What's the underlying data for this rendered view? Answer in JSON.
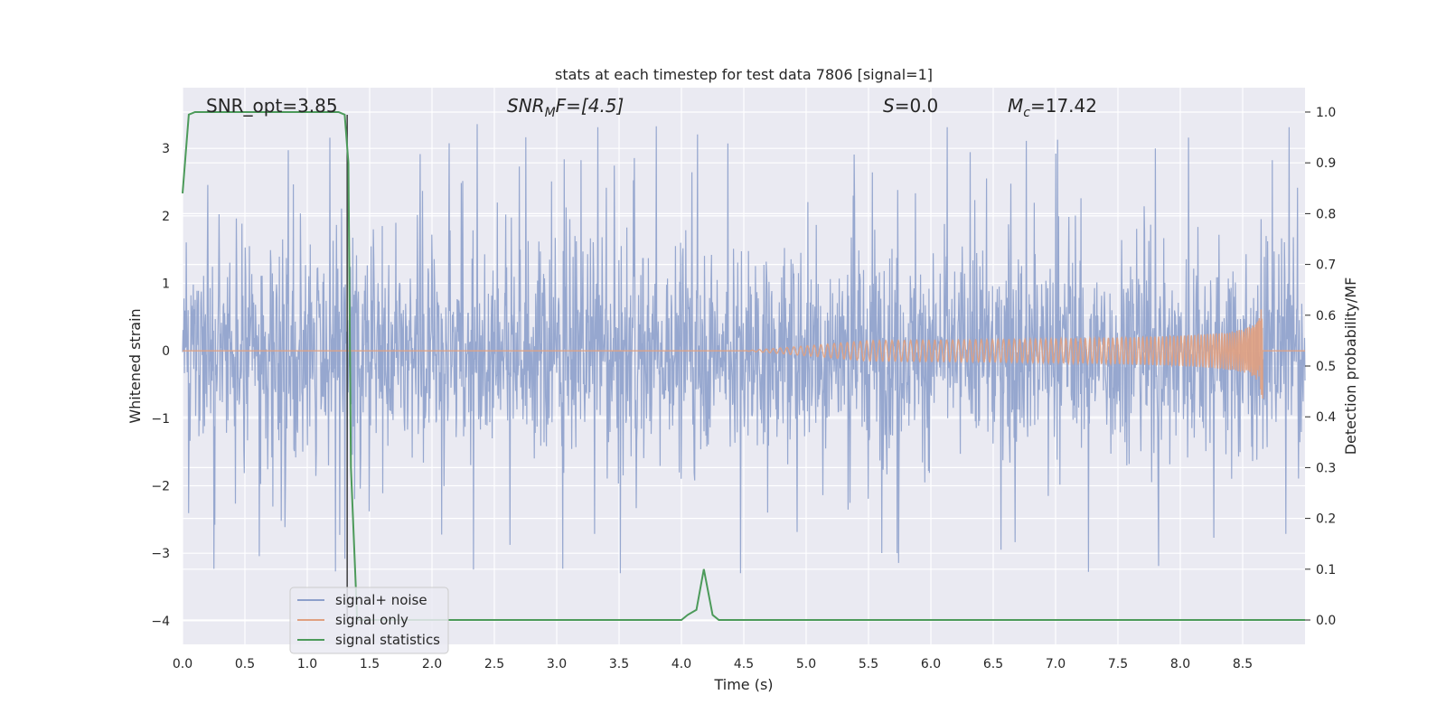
{
  "chart_data": {
    "type": "line",
    "title": "stats at each timestep for test data 7806 [signal=1]",
    "xlabel": "Time (s)",
    "ylabel": "Whitened strain",
    "y2label": "Detection probability/MF",
    "xlim": [
      0.0,
      9.0
    ],
    "ylim": [
      -4.35,
      3.9
    ],
    "y2lim": [
      -0.048,
      1.048
    ],
    "xticks": [
      "0.0",
      "0.5",
      "1.0",
      "1.5",
      "2.0",
      "2.5",
      "3.0",
      "3.5",
      "4.0",
      "4.5",
      "5.0",
      "5.5",
      "6.0",
      "6.5",
      "7.0",
      "7.5",
      "8.0",
      "8.5"
    ],
    "yticks": [
      "3",
      "2",
      "1",
      "0",
      "−1",
      "−2",
      "−3",
      "−4"
    ],
    "y2ticks": [
      "1.0",
      "0.9",
      "0.8",
      "0.7",
      "0.6",
      "0.5",
      "0.4",
      "0.3",
      "0.2",
      "0.1",
      "0.0"
    ],
    "grid": true,
    "legend_position": "lower-left",
    "annotations": {
      "snr_opt": "SNR_opt=3.85",
      "snr_mf_label": "SNR",
      "snr_mf_sub": "M",
      "snr_mf_rest": "F=[4.5]",
      "s_label": "S",
      "s_value": "=0.0",
      "mc_label": "M",
      "mc_sub": "c",
      "mc_value": "=17.42"
    },
    "vertical_marker_x": 1.32,
    "series": [
      {
        "name": "signal+ noise",
        "color": "#8da0cb",
        "axis": "left",
        "description_range": [
          -4.0,
          3.5
        ],
        "sample_envelope": {
          "typical_min": -1.7,
          "typical_max": 1.7,
          "spike_max": 3.5,
          "spike_min": -4.0
        }
      },
      {
        "name": "signal only",
        "color": "#e0a080",
        "axis": "left",
        "chirp": {
          "start_x": 4.5,
          "end_x": 8.66,
          "peak_amplitude": 0.85
        }
      },
      {
        "name": "signal statistics",
        "color": "#4c9a5a",
        "axis": "right",
        "x": [
          0.0,
          0.05,
          0.1,
          0.2,
          1.25,
          1.3,
          1.33,
          1.35,
          1.4,
          1.45,
          4.0,
          4.05,
          4.12,
          4.18,
          4.25,
          4.3,
          9.0
        ],
        "y": [
          0.84,
          0.995,
          1.0,
          1.0,
          1.0,
          0.995,
          0.9,
          0.3,
          0.0,
          0.0,
          0.0,
          0.01,
          0.02,
          0.1,
          0.01,
          0.0,
          0.0
        ]
      }
    ]
  }
}
